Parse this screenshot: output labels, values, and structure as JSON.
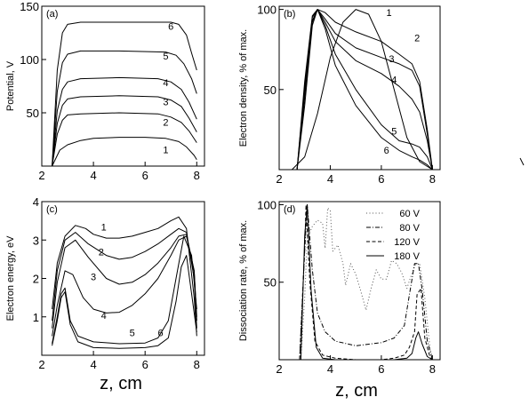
{
  "x_axis_title": "z, cm",
  "chart_data": [
    {
      "type": "line",
      "panel_label": "(a)",
      "ylabel": "Potential, V",
      "xlim": [
        2,
        8.3
      ],
      "ylim": [
        0,
        150
      ],
      "xticks": [
        2,
        4,
        6,
        8
      ],
      "yticks": [
        50,
        100,
        150
      ],
      "grid": false,
      "series": [
        {
          "name": "1",
          "x": [
            2.4,
            2.7,
            3.0,
            3.5,
            4,
            5,
            6,
            6.8,
            7.3,
            7.6,
            7.9,
            8.0
          ],
          "y": [
            0,
            15,
            20,
            24,
            26,
            27,
            27,
            26,
            23,
            18,
            10,
            6
          ]
        },
        {
          "name": "2",
          "x": [
            2.4,
            2.6,
            2.8,
            3.0,
            3.5,
            5,
            6.5,
            7.0,
            7.4,
            7.7,
            8.0
          ],
          "y": [
            0,
            30,
            43,
            48,
            49,
            50,
            49,
            46,
            41,
            33,
            22
          ]
        },
        {
          "name": "3",
          "x": [
            2.4,
            2.6,
            2.8,
            3.0,
            3.5,
            5,
            6.5,
            7.0,
            7.4,
            7.7,
            8.0
          ],
          "y": [
            0,
            40,
            57,
            63,
            65,
            66,
            65,
            62,
            56,
            45,
            32
          ]
        },
        {
          "name": "4",
          "x": [
            2.4,
            2.6,
            2.8,
            3.0,
            3.5,
            5,
            6.5,
            7.0,
            7.4,
            7.7,
            8.0
          ],
          "y": [
            0,
            52,
            72,
            79,
            82,
            83,
            82,
            79,
            72,
            60,
            44
          ]
        },
        {
          "name": "5",
          "x": [
            2.4,
            2.6,
            2.8,
            3.0,
            3.5,
            5,
            6.8,
            7.2,
            7.5,
            7.8,
            8.0
          ],
          "y": [
            0,
            70,
            97,
            105,
            108,
            108,
            107,
            104,
            96,
            82,
            68
          ]
        },
        {
          "name": "6",
          "x": [
            2.4,
            2.6,
            2.8,
            3.0,
            3.5,
            5,
            7.0,
            7.3,
            7.6,
            7.8,
            8.0
          ],
          "y": [
            0,
            90,
            125,
            133,
            135,
            135,
            135,
            133,
            123,
            106,
            90
          ]
        }
      ]
    },
    {
      "type": "line",
      "panel_label": "(b)",
      "ylabel": "Electron density, % of max.",
      "xlim": [
        2,
        8.3
      ],
      "ylim": [
        0,
        102
      ],
      "xticks": [
        2,
        4,
        6,
        8
      ],
      "yticks": [
        50,
        100
      ],
      "grid": false,
      "series": [
        {
          "name": "1",
          "x": [
            2.5,
            3.0,
            3.5,
            4.0,
            4.5,
            5.0,
            5.5,
            6.0,
            6.5,
            7.0,
            7.5,
            8.0
          ],
          "y": [
            0,
            8,
            35,
            70,
            92,
            100,
            97,
            80,
            50,
            20,
            5,
            0
          ]
        },
        {
          "name": "2",
          "x": [
            2.7,
            3.0,
            3.3,
            3.5,
            3.8,
            4.2,
            5,
            6,
            6.7,
            7.2,
            7.5,
            7.8,
            8.0
          ],
          "y": [
            0,
            40,
            90,
            100,
            98,
            92,
            86,
            80,
            72,
            66,
            55,
            25,
            0
          ]
        },
        {
          "name": "3",
          "x": [
            2.7,
            3.0,
            3.3,
            3.5,
            3.8,
            4.2,
            5,
            6,
            6.7,
            7.2,
            7.5,
            7.8,
            8.0
          ],
          "y": [
            0,
            45,
            92,
            100,
            94,
            85,
            76,
            70,
            66,
            62,
            52,
            22,
            0
          ]
        },
        {
          "name": "4",
          "x": [
            2.7,
            3.0,
            3.3,
            3.5,
            3.8,
            4.2,
            5,
            6,
            6.7,
            7.2,
            7.5,
            7.8,
            8.0
          ],
          "y": [
            0,
            48,
            93,
            100,
            92,
            80,
            68,
            60,
            52,
            44,
            36,
            18,
            0
          ]
        },
        {
          "name": "5",
          "x": [
            2.7,
            3.0,
            3.3,
            3.5,
            3.8,
            4.2,
            5,
            6,
            6.7,
            7.2,
            7.5,
            7.8,
            8.0
          ],
          "y": [
            0,
            52,
            95,
            100,
            90,
            72,
            50,
            28,
            18,
            16,
            14,
            8,
            0
          ]
        },
        {
          "name": "6",
          "x": [
            2.7,
            3.0,
            3.3,
            3.5,
            3.8,
            4.2,
            5,
            6,
            6.7,
            7.2,
            7.5,
            7.8,
            8.0
          ],
          "y": [
            0,
            55,
            96,
            100,
            88,
            65,
            40,
            20,
            12,
            8,
            6,
            3,
            0
          ]
        }
      ]
    },
    {
      "type": "line",
      "panel_label": "(c)",
      "ylabel": "Electron energy,  eV",
      "xlim": [
        2,
        8.3
      ],
      "ylim": [
        0,
        4
      ],
      "xticks": [
        2,
        4,
        6,
        8
      ],
      "yticks": [
        1,
        2,
        3,
        4
      ],
      "grid": false,
      "series": [
        {
          "name": "1",
          "x": [
            2.4,
            2.6,
            2.9,
            3.3,
            3.7,
            4,
            4.5,
            5,
            5.5,
            6,
            6.5,
            7,
            7.3,
            7.6,
            7.9,
            8.0
          ],
          "y": [
            1.2,
            2.4,
            3.1,
            3.38,
            3.3,
            3.15,
            3.05,
            3.05,
            3.1,
            3.2,
            3.3,
            3.5,
            3.6,
            3.3,
            1.5,
            0.5
          ]
        },
        {
          "name": "2",
          "x": [
            2.4,
            2.6,
            2.9,
            3.3,
            3.8,
            4.5,
            5,
            5.5,
            6,
            6.5,
            7,
            7.3,
            7.6,
            7.9,
            8.0
          ],
          "y": [
            0.9,
            2.2,
            3.0,
            3.2,
            2.9,
            2.6,
            2.5,
            2.55,
            2.7,
            2.9,
            3.15,
            3.3,
            3.2,
            2.0,
            0.7
          ]
        },
        {
          "name": "3",
          "x": [
            2.4,
            2.6,
            2.9,
            3.3,
            3.8,
            4.5,
            5,
            5.5,
            6,
            6.5,
            7,
            7.3,
            7.6,
            7.9,
            8.0
          ],
          "y": [
            0.7,
            1.9,
            2.8,
            3.0,
            2.55,
            2.0,
            1.85,
            1.9,
            2.1,
            2.4,
            2.8,
            3.1,
            3.15,
            2.2,
            0.9
          ]
        },
        {
          "name": "4",
          "x": [
            2.4,
            2.6,
            2.9,
            3.2,
            3.6,
            4,
            4.5,
            5,
            5.5,
            6,
            6.5,
            7,
            7.3,
            7.6,
            7.9,
            8.0
          ],
          "y": [
            0.5,
            1.3,
            2.2,
            2.1,
            1.5,
            1.2,
            1.1,
            1.12,
            1.3,
            1.6,
            2.0,
            2.6,
            3.0,
            3.1,
            2.2,
            1.0
          ]
        },
        {
          "name": "5",
          "x": [
            2.4,
            2.6,
            2.75,
            2.9,
            3.1,
            3.4,
            4,
            5,
            6,
            6.5,
            6.9,
            7.2,
            7.5,
            7.8,
            8.0
          ],
          "y": [
            0.3,
            1.0,
            1.6,
            1.75,
            0.9,
            0.5,
            0.35,
            0.3,
            0.32,
            0.45,
            0.9,
            2.0,
            3.1,
            2.6,
            1.2
          ]
        },
        {
          "name": "6",
          "x": [
            2.4,
            2.6,
            2.75,
            2.9,
            3.1,
            3.4,
            4,
            5,
            6,
            6.5,
            6.9,
            7.2,
            7.4,
            7.6,
            7.8,
            8.0
          ],
          "y": [
            0.25,
            0.9,
            1.5,
            1.65,
            0.8,
            0.35,
            0.2,
            0.18,
            0.2,
            0.25,
            0.45,
            1.4,
            2.3,
            2.6,
            1.6,
            0.6
          ]
        }
      ]
    },
    {
      "type": "line",
      "panel_label": "(d)",
      "ylabel": "Dissociation rate,  % of max.",
      "xlim": [
        2,
        8.3
      ],
      "ylim": [
        0,
        102
      ],
      "xticks": [
        2,
        4,
        6,
        8
      ],
      "yticks": [
        50,
        100
      ],
      "grid": false,
      "legend_position": "top-right",
      "series": [
        {
          "name": "60 V",
          "style": "dotted",
          "x": [
            2.85,
            3.0,
            3.1,
            3.3,
            3.5,
            3.7,
            3.8,
            3.9,
            4.0,
            4.1,
            4.3,
            4.5,
            4.6,
            4.8,
            5.0,
            5.2,
            5.4,
            5.6,
            5.8,
            6.0,
            6.2,
            6.4,
            6.6,
            6.8,
            7.0,
            7.2,
            7.35,
            7.5,
            7.7,
            7.9,
            8.0
          ],
          "y": [
            0,
            40,
            78,
            86,
            90,
            88,
            72,
            98,
            96,
            70,
            74,
            62,
            48,
            62,
            55,
            44,
            32,
            46,
            58,
            52,
            52,
            64,
            62,
            56,
            46,
            56,
            62,
            62,
            40,
            8,
            0
          ]
        },
        {
          "name": "80 V",
          "style": "dashed-dotted",
          "x": [
            2.8,
            3.0,
            3.1,
            3.3,
            3.5,
            3.8,
            4.2,
            5,
            6,
            6.5,
            6.9,
            7.1,
            7.3,
            7.45,
            7.6,
            7.8,
            8.0
          ],
          "y": [
            0,
            70,
            100,
            58,
            30,
            18,
            12,
            9,
            11,
            14,
            22,
            42,
            62,
            62,
            45,
            12,
            0
          ]
        },
        {
          "name": "120 V",
          "style": "dashed",
          "x": [
            2.8,
            3.0,
            3.05,
            3.2,
            3.4,
            3.7,
            4.2,
            5,
            6,
            6.5,
            6.9,
            7.1,
            7.3,
            7.4,
            7.55,
            7.7,
            7.9,
            8.0
          ],
          "y": [
            0,
            72,
            100,
            50,
            12,
            3,
            1,
            0,
            0,
            1,
            3,
            8,
            18,
            42,
            46,
            14,
            2,
            0
          ]
        },
        {
          "name": "180 V",
          "style": "solid",
          "x": [
            2.85,
            3.0,
            3.1,
            3.25,
            3.45,
            3.7,
            4.2,
            5,
            6,
            6.5,
            7.0,
            7.2,
            7.35,
            7.45,
            7.6,
            7.8,
            8.0
          ],
          "y": [
            0,
            80,
            100,
            45,
            8,
            1,
            0,
            0,
            0,
            0,
            1,
            4,
            14,
            18,
            10,
            2,
            0
          ]
        }
      ]
    }
  ]
}
